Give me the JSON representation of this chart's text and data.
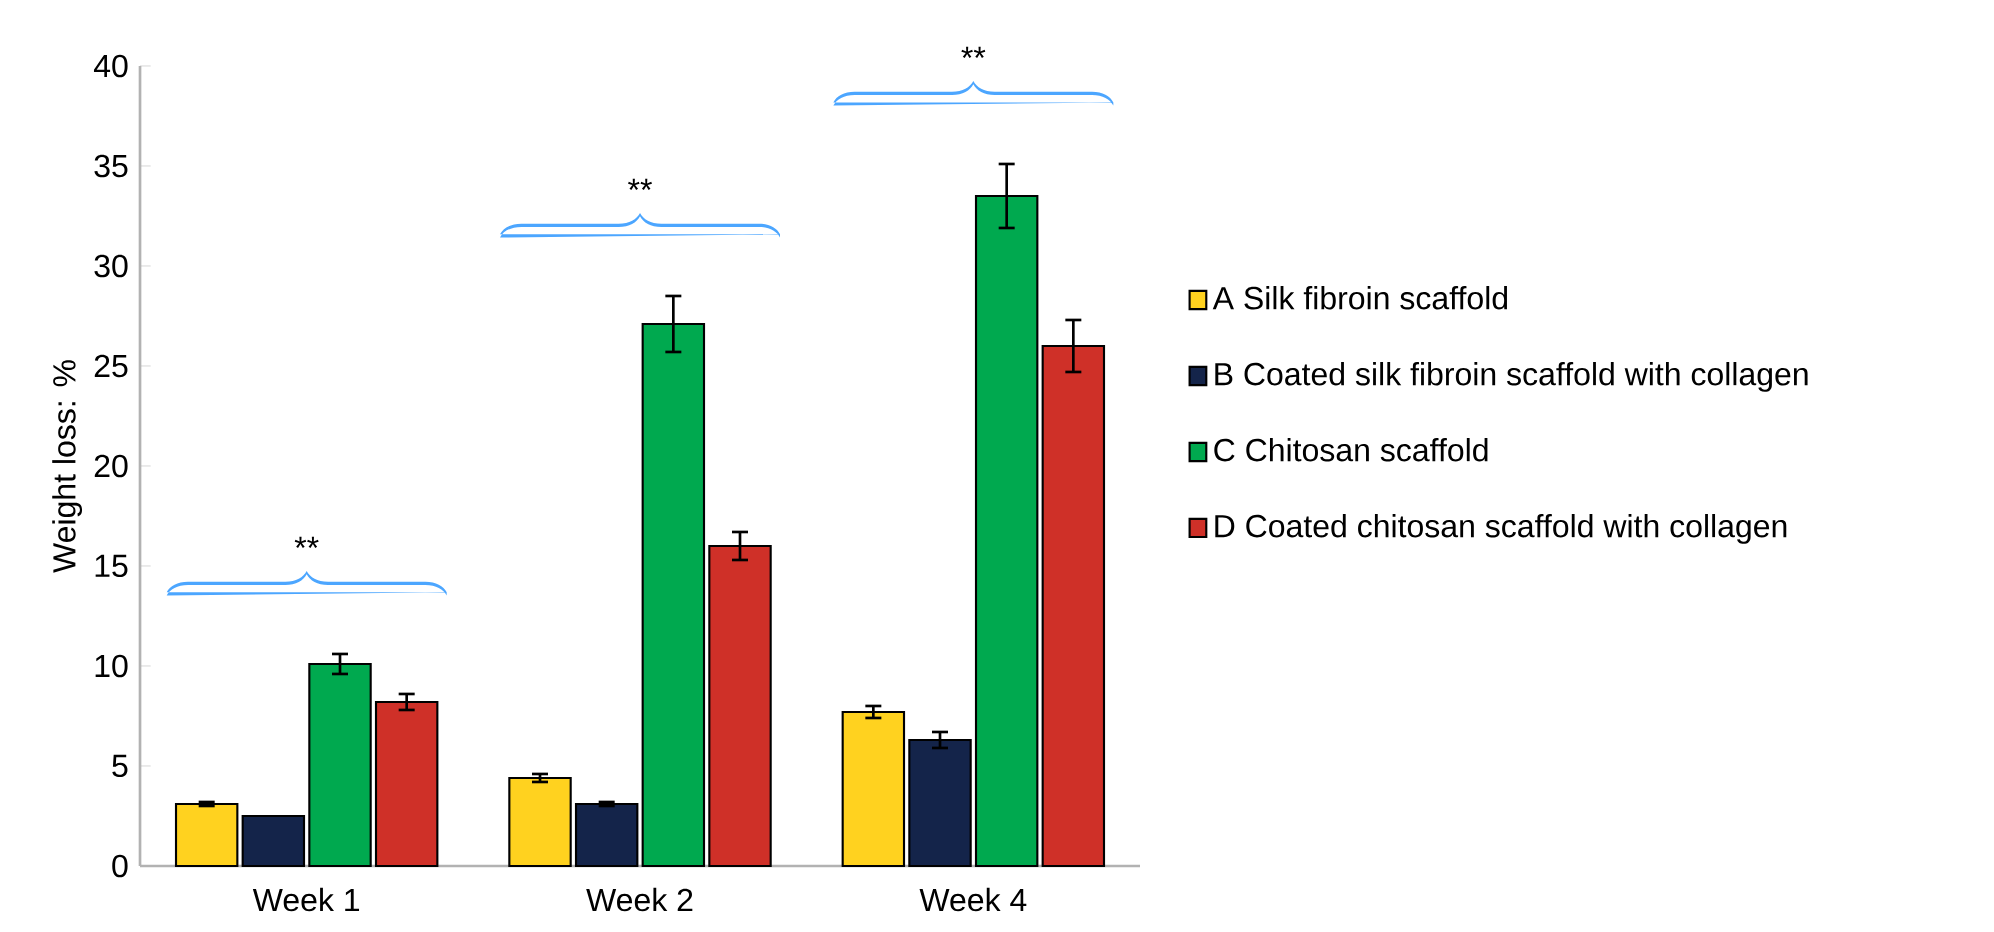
{
  "chart_data": {
    "type": "bar",
    "ylabel": "Weight loss: %",
    "categories": [
      "Week 1",
      "Week 2",
      "Week 4"
    ],
    "series": [
      {
        "name": "A Silk fibroin scaffold",
        "color": "#ffd21f",
        "values": [
          3.1,
          4.4,
          7.7
        ],
        "errors": [
          0.1,
          0.2,
          0.3
        ]
      },
      {
        "name": "B Coated silk fibroin scaffold with collagen",
        "color": "#14244a",
        "values": [
          2.5,
          3.1,
          6.3
        ],
        "errors": [
          null,
          0.1,
          0.4
        ]
      },
      {
        "name": "C Chitosan scaffold",
        "color": "#00a94f",
        "values": [
          10.1,
          27.1,
          33.5
        ],
        "errors": [
          0.5,
          1.4,
          1.6
        ]
      },
      {
        "name": "D Coated chitosan scaffold with collagen",
        "color": "#cf3028",
        "values": [
          8.2,
          16.0,
          26.0
        ],
        "errors": [
          0.4,
          0.7,
          1.3
        ]
      }
    ],
    "ylim": [
      0,
      40
    ],
    "yticks": [
      0,
      5,
      10,
      15,
      20,
      25,
      30,
      35,
      40
    ],
    "grid": false,
    "legend": "right",
    "annotations": [
      "**",
      "**",
      "**"
    ]
  }
}
